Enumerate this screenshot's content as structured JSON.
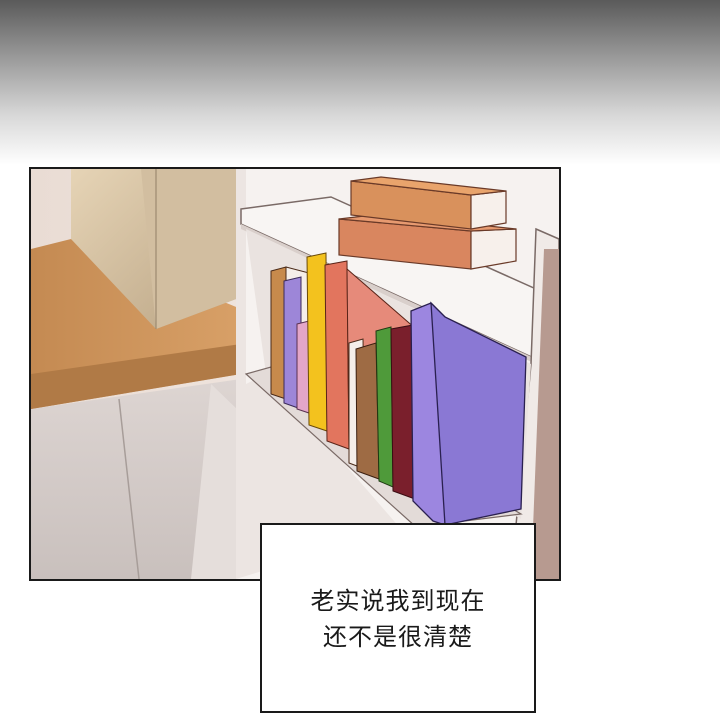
{
  "speech": {
    "line1": "老实说我到现在",
    "line2": "还不是很清楚"
  },
  "colors": {
    "desk_top": "#c98e55",
    "shelf": "#f4f0ee",
    "book_purple": "#9c86e0",
    "book_red": "#e07868",
    "book_yellow": "#f3c21e"
  }
}
